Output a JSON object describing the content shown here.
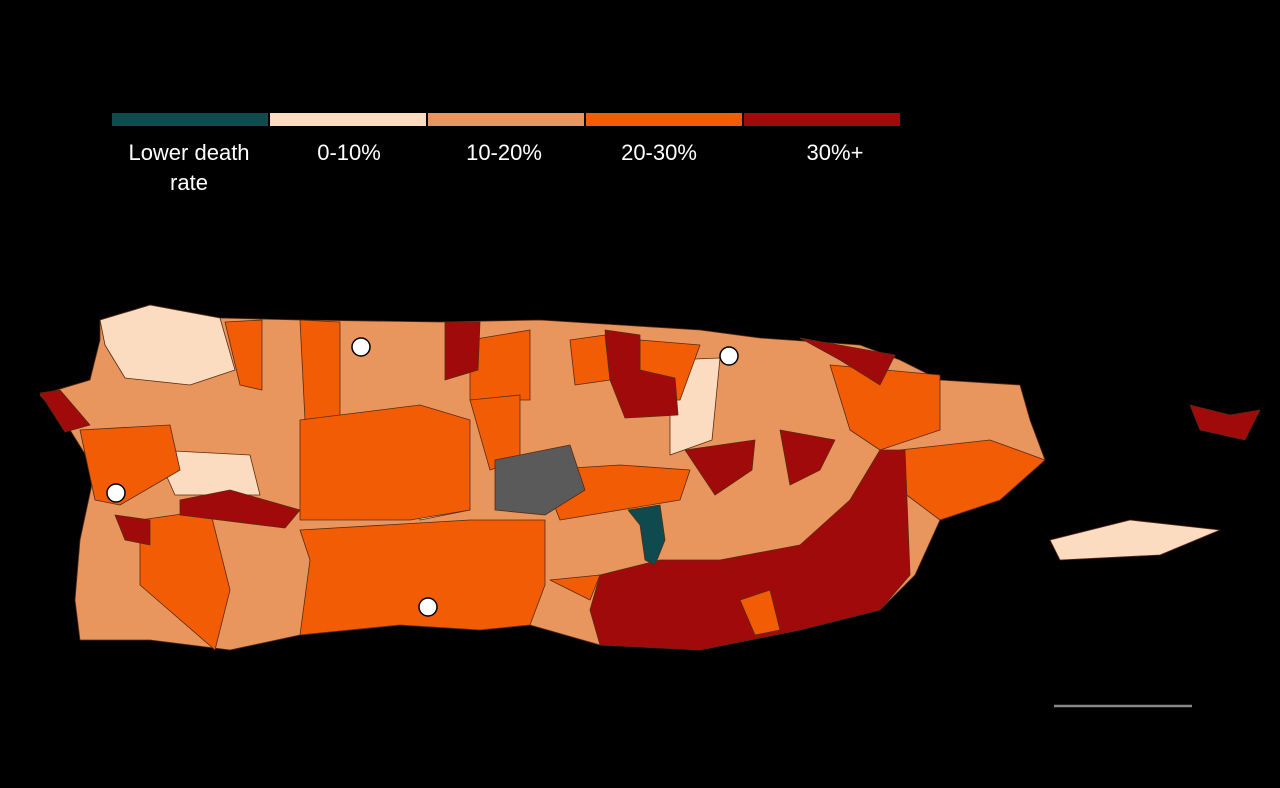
{
  "legend": {
    "items": [
      {
        "label": "Lower death rate",
        "color": "#0e4a4e"
      },
      {
        "label": "0-10%",
        "color": "#fbdcc0"
      },
      {
        "label": "10-20%",
        "color": "#e8965e"
      },
      {
        "label": "20-30%",
        "color": "#f25c05"
      },
      {
        "label": "30%+",
        "color": "#a10a0a"
      }
    ]
  }
}
